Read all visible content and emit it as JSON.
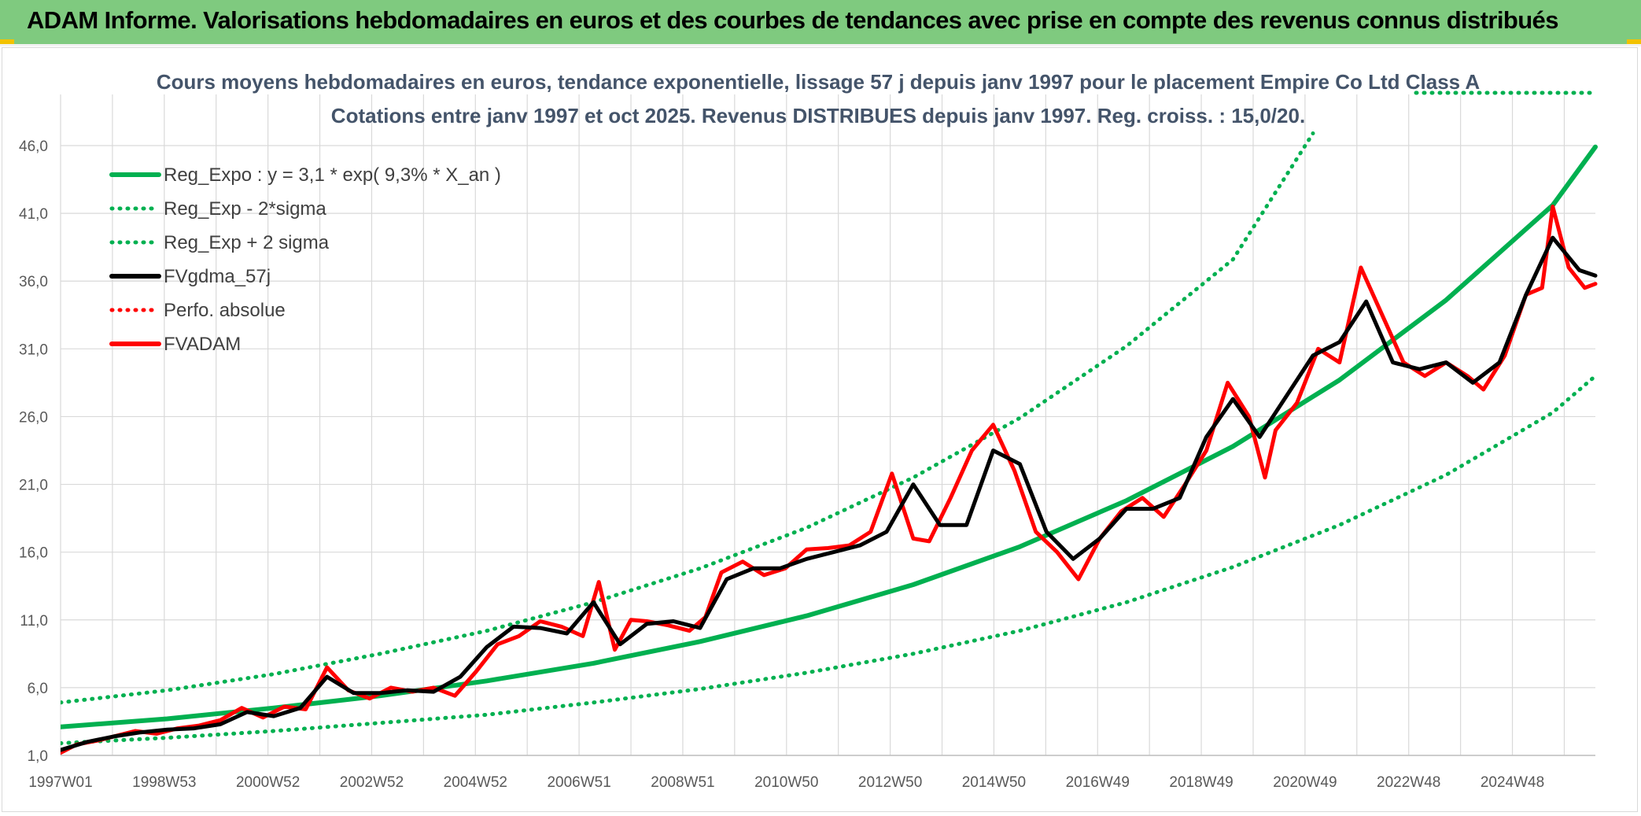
{
  "banner": {
    "title": "ADAM Informe. Valorisations hebdomadaires en euros et des courbes de tendances avec prise en compte des revenus connus distribués"
  },
  "colors": {
    "banner_bg": "#7fca7f",
    "reg_expo": "#00b050",
    "fvgdma": "#000000",
    "fvadam": "#ff0000",
    "title_text": "#44546a",
    "grid": "#d9d9d9",
    "corner_accent": "#f2c200"
  },
  "chart_data": {
    "type": "line",
    "title": "Cours moyens hebdomadaires en euros, tendance exponentielle, lissage 57 j depuis janv 1997 pour le placement Empire Co Ltd Class A",
    "subtitle": "Cotations entre janv 1997 et oct 2025. Revenus DISTRIBUES depuis janv 1997. Reg. croiss. : 15,0/20.",
    "xlabel": "",
    "ylabel": "",
    "x_ticks": [
      "1997W01",
      "1998W53",
      "2000W52",
      "2002W52",
      "2004W52",
      "2006W51",
      "2008W51",
      "2010W50",
      "2012W50",
      "2014W50",
      "2016W49",
      "2018W49",
      "2020W49",
      "2022W48",
      "2024W48"
    ],
    "y_ticks": [
      "1,0",
      "6,0",
      "11,0",
      "16,0",
      "21,0",
      "26,0",
      "31,0",
      "36,0",
      "41,0",
      "46,0"
    ],
    "ylim": [
      1,
      46
    ],
    "xlim": [
      1997.0,
      2025.8
    ],
    "grid": true,
    "legend_position": "top-left",
    "legend": [
      {
        "label": "Reg_Expo : y = 3,1 * exp( 9,3% *  X_an )",
        "style": "solid",
        "color": "#00b050"
      },
      {
        "label": "Reg_Exp - 2*sigma",
        "style": "dotted",
        "color": "#00b050"
      },
      {
        "label": "Reg_Exp + 2 sigma",
        "style": "dotted",
        "color": "#00b050"
      },
      {
        "label": "FVgdma_57j",
        "style": "solid",
        "color": "#000000"
      },
      {
        "label": "Perfo. absolue",
        "style": "dotted",
        "color": "#ff0000"
      },
      {
        "label": "FVADAM",
        "style": "solid",
        "color": "#ff0000"
      }
    ],
    "series": [
      {
        "name": "Reg_Expo : y = 3,1 * exp( 9,3% *  X_an )",
        "x": [
          1997,
          1999,
          2001,
          2003,
          2005,
          2007,
          2009,
          2011,
          2013,
          2015,
          2017,
          2019,
          2021,
          2023,
          2025,
          2025.8
        ],
        "y": [
          3.1,
          3.7,
          4.5,
          5.4,
          6.5,
          7.8,
          9.4,
          11.3,
          13.6,
          16.4,
          19.8,
          23.8,
          28.7,
          34.6,
          41.6,
          45.9
        ]
      },
      {
        "name": "Reg_Exp - 2*sigma",
        "x": [
          1997,
          1999,
          2001,
          2003,
          2005,
          2007,
          2009,
          2011,
          2013,
          2015,
          2017,
          2019,
          2021,
          2023,
          2025,
          2025.8
        ],
        "y": [
          1.9,
          2.3,
          2.8,
          3.4,
          4.0,
          4.9,
          5.9,
          7.1,
          8.5,
          10.2,
          12.3,
          14.9,
          18.0,
          21.7,
          26.3,
          29.0
        ]
      },
      {
        "name": "Reg_Exp + 2 sigma",
        "x": [
          1997,
          1999,
          2001,
          2003,
          2005,
          2007,
          2009,
          2011,
          2013,
          2015,
          2017,
          2019,
          2020.5
        ],
        "y": [
          4.9,
          5.8,
          7.0,
          8.5,
          10.2,
          12.3,
          14.8,
          17.8,
          21.5,
          25.9,
          31.2,
          37.6,
          46.9
        ]
      },
      {
        "name": "FVgdma_57j",
        "x": [
          1997.0,
          1997.5,
          1998.0,
          1998.5,
          1999.0,
          1999.5,
          2000.0,
          2000.5,
          2001.0,
          2001.5,
          2002.0,
          2002.5,
          2003.0,
          2003.5,
          2004.0,
          2004.5,
          2005.0,
          2005.5,
          2006.0,
          2006.5,
          2007.0,
          2007.5,
          2008.0,
          2008.5,
          2009.0,
          2009.5,
          2010.0,
          2010.5,
          2011.0,
          2011.5,
          2012.0,
          2012.5,
          2013.0,
          2013.5,
          2014.0,
          2014.5,
          2015.0,
          2015.5,
          2016.0,
          2016.5,
          2017.0,
          2017.5,
          2018.0,
          2018.5,
          2019.0,
          2019.5,
          2020.0,
          2020.5,
          2021.0,
          2021.5,
          2022.0,
          2022.5,
          2023.0,
          2023.5,
          2024.0,
          2024.5,
          2025.0,
          2025.5,
          2025.8
        ],
        "y": [
          1.4,
          2.0,
          2.4,
          2.7,
          2.9,
          3.0,
          3.3,
          4.2,
          3.9,
          4.5,
          6.8,
          5.6,
          5.6,
          5.8,
          5.7,
          6.8,
          9.0,
          10.5,
          10.4,
          10.0,
          12.3,
          9.2,
          10.7,
          10.9,
          10.4,
          14.0,
          14.8,
          14.8,
          15.5,
          16.0,
          16.5,
          17.5,
          21.0,
          18.0,
          18.0,
          23.5,
          22.5,
          17.5,
          15.5,
          17.0,
          19.2,
          19.2,
          20.0,
          24.5,
          27.3,
          24.5,
          27.5,
          30.5,
          31.5,
          34.5,
          30.0,
          29.5,
          30.0,
          28.5,
          30.0,
          35.0,
          39.2,
          36.8,
          36.4
        ]
      },
      {
        "name": "FVADAM",
        "x": [
          1997.0,
          1997.3,
          1997.7,
          1998.0,
          1998.4,
          1998.8,
          1999.2,
          1999.6,
          2000.0,
          2000.4,
          2000.8,
          2001.2,
          2001.6,
          2002.0,
          2002.4,
          2002.8,
          2003.2,
          2003.6,
          2004.0,
          2004.4,
          2004.8,
          2005.2,
          2005.6,
          2006.0,
          2006.4,
          2006.8,
          2007.1,
          2007.4,
          2007.7,
          2008.0,
          2008.4,
          2008.8,
          2009.1,
          2009.4,
          2009.8,
          2010.2,
          2010.6,
          2011.0,
          2011.4,
          2011.8,
          2012.2,
          2012.6,
          2013.0,
          2013.3,
          2013.7,
          2014.1,
          2014.5,
          2014.9,
          2015.3,
          2015.7,
          2016.1,
          2016.5,
          2016.9,
          2017.3,
          2017.7,
          2018.1,
          2018.5,
          2018.9,
          2019.3,
          2019.6,
          2019.8,
          2020.2,
          2020.6,
          2021.0,
          2021.4,
          2021.8,
          2022.2,
          2022.6,
          2023.0,
          2023.4,
          2023.7,
          2024.1,
          2024.5,
          2024.8,
          2025.0,
          2025.3,
          2025.6,
          2025.8
        ],
        "y": [
          1.2,
          1.8,
          2.1,
          2.4,
          2.8,
          2.6,
          3.0,
          3.2,
          3.6,
          4.5,
          3.8,
          4.6,
          4.4,
          7.5,
          5.8,
          5.2,
          6.0,
          5.7,
          6.0,
          5.4,
          7.2,
          9.2,
          9.8,
          10.9,
          10.5,
          9.8,
          13.8,
          8.8,
          11.0,
          10.9,
          10.6,
          10.2,
          11.2,
          14.5,
          15.3,
          14.3,
          14.8,
          16.2,
          16.3,
          16.5,
          17.5,
          21.8,
          17.0,
          16.8,
          20.0,
          23.5,
          25.4,
          22.0,
          17.5,
          16.0,
          14.0,
          17.0,
          19.0,
          20.0,
          18.6,
          21.0,
          23.5,
          28.5,
          26.0,
          21.5,
          25.0,
          27.0,
          31.0,
          30.0,
          37.0,
          33.5,
          30.0,
          29.0,
          30.0,
          29.0,
          28.0,
          30.5,
          35.0,
          35.5,
          41.5,
          37.0,
          35.5,
          35.8
        ]
      }
    ]
  }
}
